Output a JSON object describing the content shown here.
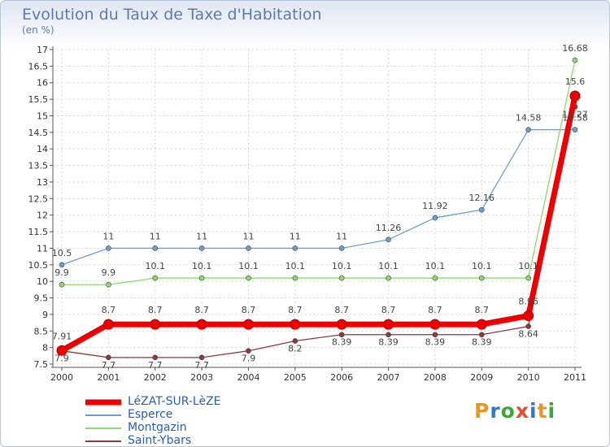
{
  "header": {
    "title": "Evolution du Taux de Taxe d'Habitation",
    "subtitle": "(en %)"
  },
  "logo": {
    "text": "Proxiti",
    "colors": [
      "#e8961e",
      "#2f79c9",
      "#3aa73a",
      "#e84a2a",
      "#2f79c9",
      "#e8961e",
      "#3aa73a"
    ]
  },
  "chart_data": {
    "type": "line",
    "title": "Evolution du Taux de Taxe d'Habitation",
    "subtitle": "(en %)",
    "xlabel": "",
    "ylabel": "",
    "x": [
      "2000",
      "2001",
      "2002",
      "2003",
      "2004",
      "2005",
      "2006",
      "2007",
      "2008",
      "2009",
      "2010",
      "2011"
    ],
    "ylim": [
      7.5,
      17
    ],
    "yticks": [
      "7.5",
      "8",
      "8.5",
      "9",
      "9.5",
      "10",
      "10.5",
      "11",
      "11.5",
      "12",
      "12.5",
      "13",
      "13.5",
      "14",
      "14.5",
      "15",
      "15.5",
      "16",
      "16.5",
      "17"
    ],
    "grid": true,
    "legend_position": "bottom-left",
    "series": [
      {
        "name": "LéZAT-SUR-LèZE",
        "values": [
          7.91,
          8.7,
          8.7,
          8.7,
          8.7,
          8.7,
          8.7,
          8.7,
          8.7,
          8.7,
          8.96,
          15.6
        ],
        "labels": [
          "7.91",
          "8.7",
          "8.7",
          "8.7",
          "8.7",
          "8.7",
          "8.7",
          "8.7",
          "8.7",
          "8.7",
          "8.96",
          "15.6"
        ],
        "color": "#ee0000",
        "width": 7
      },
      {
        "name": "Esperce",
        "values": [
          10.5,
          11,
          11,
          11,
          11,
          11,
          11,
          11.26,
          11.92,
          12.16,
          14.58,
          14.58
        ],
        "labels": [
          "10.5",
          "11",
          "11",
          "11",
          "11",
          "11",
          "11",
          "11.26",
          "11.92",
          "12.16",
          "14.58",
          "14.58"
        ],
        "color": "#6a9ed1",
        "width": 1.3
      },
      {
        "name": "Montgazin",
        "values": [
          9.9,
          9.9,
          10.1,
          10.1,
          10.1,
          10.1,
          10.1,
          10.1,
          10.1,
          10.1,
          10.1,
          16.68
        ],
        "labels": [
          "9.9",
          "9.9",
          "10.1",
          "10.1",
          "10.1",
          "10.1",
          "10.1",
          "10.1",
          "10.1",
          "10.1",
          "10.1",
          "16.68"
        ],
        "color": "#8fd86a",
        "width": 1.3
      },
      {
        "name": "Saint-Ybars",
        "values": [
          7.9,
          7.7,
          7.7,
          7.7,
          7.9,
          8.2,
          8.39,
          8.39,
          8.39,
          8.39,
          8.64,
          15.27
        ],
        "labels": [
          "7.9",
          "7.7",
          "7.7",
          "7.7",
          "7.9",
          "8.2",
          "8.39",
          "8.39",
          "8.39",
          "8.39",
          "8.64",
          "15.27"
        ],
        "color": "#8a3a3a",
        "width": 1.3
      }
    ]
  }
}
